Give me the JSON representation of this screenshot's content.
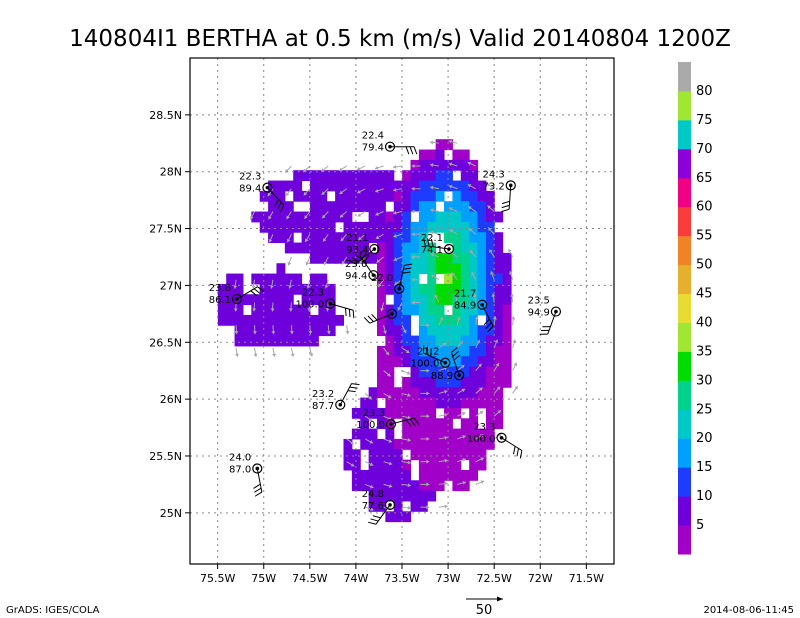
{
  "title": "140804I1 BERTHA at 0.5 km (m/s) Valid 20140804 1200Z",
  "footer": {
    "left": "GrADS: IGES/COLA",
    "scale_label": "50",
    "right": "2014-08-06-11:45"
  },
  "map": {
    "lon_labels": [
      "75.5W",
      "75W",
      "74.5W",
      "74W",
      "73.5W",
      "73W",
      "72.5W",
      "72W",
      "71.5W"
    ],
    "lon_values": [
      -75.5,
      -75,
      -74.5,
      -74,
      -73.5,
      -73,
      -72.5,
      -72,
      -71.5
    ],
    "lat_labels": [
      "28.5N",
      "28N",
      "27.5N",
      "27N",
      "26.5N",
      "26N",
      "25.5N",
      "25N"
    ],
    "lat_values": [
      28.5,
      28,
      27.5,
      27,
      26.5,
      26,
      25.5,
      25
    ],
    "lon_range": [
      -75.8,
      -71.2
    ],
    "lat_range": [
      24.55,
      29.0
    ],
    "grid": true
  },
  "colorbar": {
    "labels": [
      "5",
      "10",
      "15",
      "20",
      "25",
      "30",
      "35",
      "40",
      "45",
      "50",
      "55",
      "60",
      "65",
      "70",
      "75",
      "80"
    ],
    "colors": [
      "#a000c8",
      "#6e00dc",
      "#1e3cff",
      "#00a0ff",
      "#00c8c8",
      "#00d28c",
      "#00dc00",
      "#a0e632",
      "#e6dc32",
      "#e6af2d",
      "#f08228",
      "#fa3c3c",
      "#f00082",
      "#8c00dc",
      "#00c8c8",
      "#a0e632",
      "#aaaaaa"
    ]
  },
  "observations": [
    {
      "lat": 28.22,
      "lon": -73.63,
      "t": "22.4",
      "rh": "79.4"
    },
    {
      "lat": 27.86,
      "lon": -74.96,
      "t": "22.3",
      "rh": "89.4"
    },
    {
      "lat": 27.88,
      "lon": -72.32,
      "t": "24.3",
      "rh": "73.2"
    },
    {
      "lat": 27.32,
      "lon": -73.8,
      "t": "21.1",
      "rh": "93.4"
    },
    {
      "lat": 27.32,
      "lon": -72.99,
      "t": "22.1",
      "rh": "74.1"
    },
    {
      "lat": 27.09,
      "lon": -73.81,
      "t": "23.0",
      "rh": "94.4"
    },
    {
      "lat": 26.97,
      "lon": -73.53,
      "t": "22.0",
      "rh": ""
    },
    {
      "lat": 26.88,
      "lon": -75.29,
      "t": "23.6",
      "rh": "86.1"
    },
    {
      "lat": 26.84,
      "lon": -74.28,
      "t": "22.3",
      "rh": "100.0"
    },
    {
      "lat": 26.83,
      "lon": -72.63,
      "t": "21.7",
      "rh": "84.9"
    },
    {
      "lat": 26.77,
      "lon": -71.83,
      "t": "23.5",
      "rh": "94.9"
    },
    {
      "lat": 26.75,
      "lon": -73.61,
      "t": "",
      "rh": ""
    },
    {
      "lat": 26.32,
      "lon": -73.03,
      "t": "21.2",
      "rh": "100.0"
    },
    {
      "lat": 26.21,
      "lon": -72.88,
      "t": "",
      "rh": "88.9"
    },
    {
      "lat": 25.95,
      "lon": -74.17,
      "t": "23.2",
      "rh": "87.7"
    },
    {
      "lat": 25.78,
      "lon": -73.62,
      "t": "23.3",
      "rh": "100.0"
    },
    {
      "lat": 25.66,
      "lon": -72.42,
      "t": "23.3",
      "rh": "100.0"
    },
    {
      "lat": 25.39,
      "lon": -75.07,
      "t": "24.0",
      "rh": "87.0"
    },
    {
      "lat": 25.07,
      "lon": -73.63,
      "t": "24.8",
      "rh": "77.6"
    }
  ]
}
